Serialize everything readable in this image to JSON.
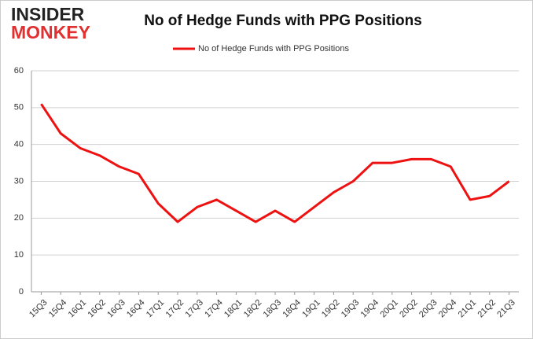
{
  "logo": {
    "line1": "INSIDER",
    "line2": "MONKEY"
  },
  "chart_data": {
    "type": "line",
    "title": "No of Hedge Funds with PPG Positions",
    "categories": [
      "15Q3",
      "15Q4",
      "16Q1",
      "16Q2",
      "16Q3",
      "16Q4",
      "17Q1",
      "17Q2",
      "17Q3",
      "17Q4",
      "18Q1",
      "18Q2",
      "18Q3",
      "18Q4",
      "19Q1",
      "19Q2",
      "19Q3",
      "19Q4",
      "20Q1",
      "20Q2",
      "20Q3",
      "20Q4",
      "21Q1",
      "21Q2",
      "21Q3"
    ],
    "series": [
      {
        "name": "No of Hedge Funds with PPG Positions",
        "color": "#ee1111",
        "values": [
          51,
          43,
          39,
          37,
          34,
          32,
          24,
          19,
          23,
          25,
          22,
          19,
          22,
          19,
          23,
          27,
          30,
          35,
          35,
          36,
          36,
          34,
          25,
          26,
          30
        ]
      }
    ],
    "ylim": [
      0,
      60
    ],
    "yticks": [
      0,
      10,
      20,
      30,
      40,
      50,
      60
    ],
    "grid": true,
    "legend": "top"
  }
}
